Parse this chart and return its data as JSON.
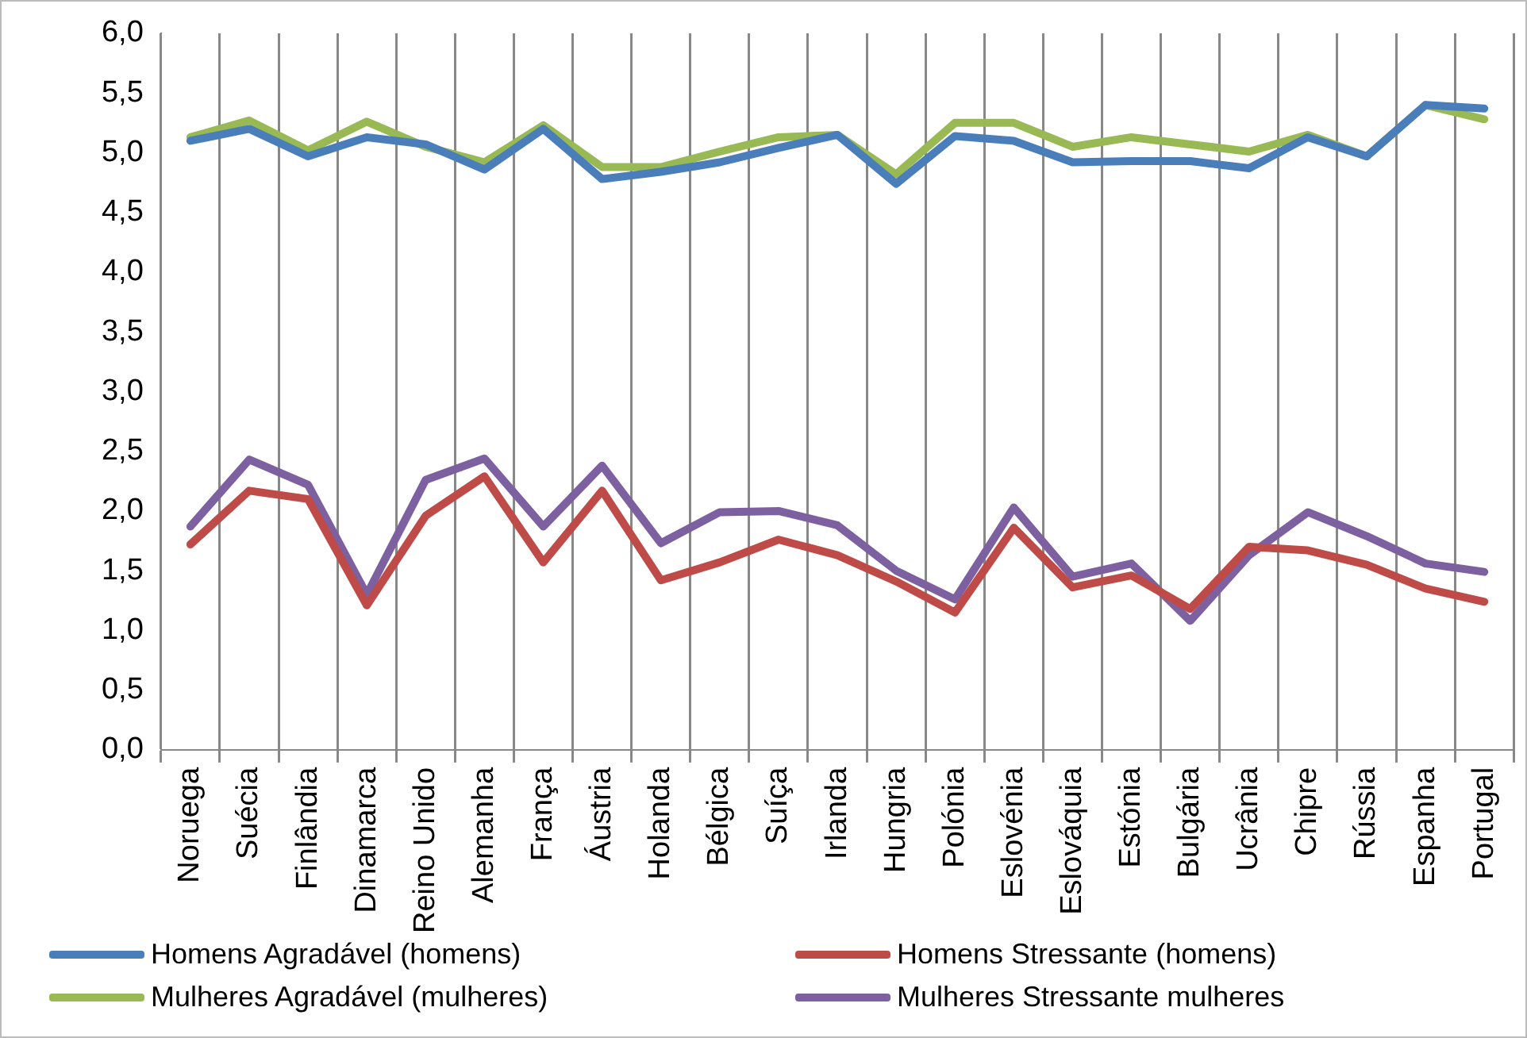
{
  "chart_data": {
    "type": "line",
    "categories": [
      "Noruega",
      "Suécia",
      "Finlândia",
      "Dinamarca",
      "Reino Unido",
      "Alemanha",
      "França",
      "Áustria",
      "Holanda",
      "Bélgica",
      "Suíça",
      "Irlanda",
      "Hungria",
      "Polónia",
      "Eslovénia",
      "Eslováquia",
      "Estónia",
      "Bulgária",
      "Ucrânia",
      "Chipre",
      "Rússia",
      "Espanha",
      "Portugal"
    ],
    "series": [
      {
        "name": "Homens Agradável (homens)",
        "color": "#4a7ebb",
        "values": [
          5.1,
          5.2,
          4.97,
          5.13,
          5.07,
          4.86,
          5.2,
          4.78,
          4.84,
          4.92,
          5.04,
          5.15,
          4.74,
          5.14,
          5.1,
          4.92,
          4.93,
          4.93,
          4.87,
          5.13,
          4.97,
          5.4,
          5.37
        ]
      },
      {
        "name": "Homens Stressante (homens)",
        "color": "#be4b48",
        "values": [
          1.72,
          2.17,
          2.1,
          1.21,
          1.96,
          2.29,
          1.57,
          2.17,
          1.42,
          1.57,
          1.76,
          1.63,
          1.41,
          1.15,
          1.86,
          1.36,
          1.46,
          1.18,
          1.7,
          1.67,
          1.55,
          1.35,
          1.24
        ]
      },
      {
        "name": "Mulheres Agradável (mulheres)",
        "color": "#98b954",
        "values": [
          5.13,
          5.27,
          5.02,
          5.26,
          5.05,
          4.92,
          5.23,
          4.88,
          4.88,
          5.01,
          5.13,
          5.15,
          4.82,
          5.25,
          5.25,
          5.05,
          5.13,
          5.07,
          5.01,
          5.15,
          4.97,
          5.4,
          5.28
        ]
      },
      {
        "name": "Mulheres Stressante mulheres",
        "color": "#7d60a0",
        "values": [
          1.87,
          2.43,
          2.22,
          1.3,
          2.26,
          2.44,
          1.87,
          2.38,
          1.73,
          1.99,
          2.0,
          1.88,
          1.5,
          1.26,
          2.03,
          1.45,
          1.56,
          1.08,
          1.63,
          1.99,
          1.79,
          1.56,
          1.49
        ]
      }
    ],
    "ylim": [
      0,
      6
    ],
    "yticks": [
      {
        "value": 0,
        "label": "0,0"
      },
      {
        "value": 0.5,
        "label": "0,5"
      },
      {
        "value": 1,
        "label": "1,0"
      },
      {
        "value": 1.5,
        "label": "1,5"
      },
      {
        "value": 2,
        "label": "2,0"
      },
      {
        "value": 2.5,
        "label": "2,5"
      },
      {
        "value": 3,
        "label": "3,0"
      },
      {
        "value": 3.5,
        "label": "3,5"
      },
      {
        "value": 4,
        "label": "4,0"
      },
      {
        "value": 4.5,
        "label": "4,5"
      },
      {
        "value": 5,
        "label": "5,0"
      },
      {
        "value": 5.5,
        "label": "5,5"
      },
      {
        "value": 6,
        "label": "6,0"
      }
    ],
    "grid": "x",
    "legend": "bottom",
    "marker": "none",
    "line_style": "solid"
  }
}
